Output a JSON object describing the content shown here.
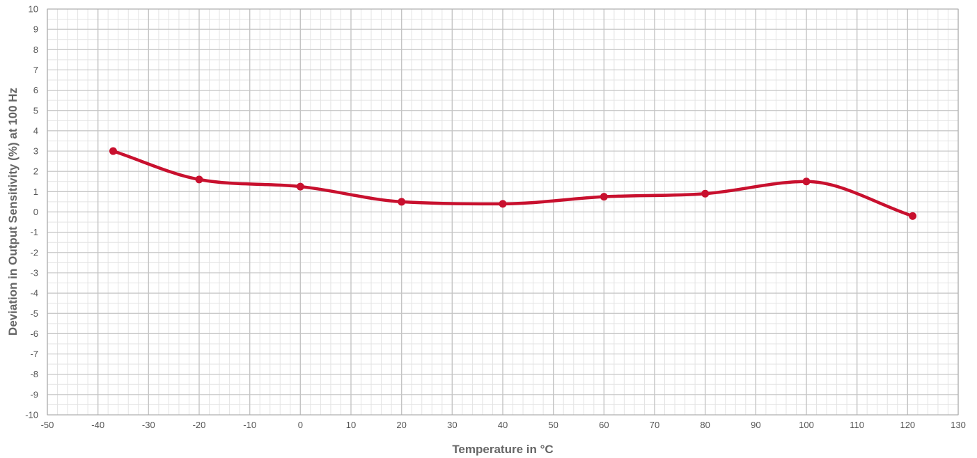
{
  "chart_data": {
    "type": "line",
    "title": "",
    "xlabel": "Temperature in °C",
    "ylabel": "Deviation in Output Sensitivity (%) at 100 Hz",
    "xlim": [
      -50,
      130
    ],
    "ylim": [
      -10,
      10
    ],
    "x_major_step": 10,
    "x_minor_step": 2,
    "y_major_step": 1,
    "y_minor_step": 0.5,
    "grid": true,
    "legend": "none",
    "x_ticks": [
      "-50",
      "-40",
      "-30",
      "-20",
      "-10",
      "0",
      "10",
      "20",
      "30",
      "40",
      "50",
      "60",
      "70",
      "80",
      "90",
      "100",
      "110",
      "120",
      "130"
    ],
    "y_ticks": [
      "10",
      "9",
      "8",
      "7",
      "6",
      "5",
      "4",
      "3",
      "2",
      "1",
      "0",
      "-1",
      "-2",
      "-3",
      "-4",
      "-5",
      "-6",
      "-7",
      "-8",
      "-9",
      "-10"
    ],
    "series": [
      {
        "color": "#c8102e",
        "x": [
          -37,
          -20,
          0,
          20,
          40,
          60,
          80,
          100,
          121
        ],
        "y": [
          3.0,
          1.6,
          1.25,
          0.5,
          0.4,
          0.75,
          0.9,
          1.5,
          -0.2
        ]
      }
    ]
  }
}
